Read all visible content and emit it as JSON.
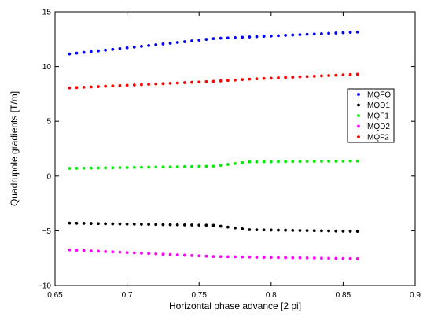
{
  "chart_data": {
    "type": "scatter",
    "title": "",
    "xlabel": "Horizontal phase advance [2 pi]",
    "ylabel": "Quadrupole gradients [T/m]",
    "xlim": [
      0.65,
      0.9
    ],
    "ylim": [
      -10,
      15
    ],
    "x_ticks": [
      {
        "value": 0.65,
        "label": "0.65"
      },
      {
        "value": 0.7,
        "label": "0.7"
      },
      {
        "value": 0.75,
        "label": "0.75"
      },
      {
        "value": 0.8,
        "label": "0.8"
      },
      {
        "value": 0.85,
        "label": "0.85"
      },
      {
        "value": 0.9,
        "label": "0.9"
      }
    ],
    "y_ticks": [
      {
        "value": -10,
        "label": "−10"
      },
      {
        "value": -5,
        "label": "−5"
      },
      {
        "value": 0,
        "label": "0"
      },
      {
        "value": 5,
        "label": "5"
      },
      {
        "value": 10,
        "label": "10"
      },
      {
        "value": 15,
        "label": "15"
      }
    ],
    "grid": false,
    "legend_position": "right",
    "x_start": 0.66,
    "x_end": 0.86,
    "x_step": 0.005,
    "series": [
      {
        "name": "MQFO",
        "color": "#0000ff",
        "values": [
          11.15,
          11.22,
          11.29,
          11.36,
          11.43,
          11.5,
          11.57,
          11.64,
          11.71,
          11.78,
          11.85,
          11.92,
          11.99,
          12.06,
          12.13,
          12.2,
          12.27,
          12.34,
          12.41,
          12.48,
          12.55,
          12.58,
          12.61,
          12.64,
          12.67,
          12.7,
          12.73,
          12.76,
          12.79,
          12.82,
          12.85,
          12.88,
          12.91,
          12.94,
          12.97,
          13.0,
          13.03,
          13.06,
          13.09,
          13.12,
          13.15
        ]
      },
      {
        "name": "MQD1",
        "color": "#000000",
        "values": [
          -4.3,
          -4.31,
          -4.32,
          -4.33,
          -4.34,
          -4.35,
          -4.36,
          -4.37,
          -4.38,
          -4.39,
          -4.4,
          -4.41,
          -4.42,
          -4.43,
          -4.44,
          -4.45,
          -4.46,
          -4.47,
          -4.48,
          -4.49,
          -4.5,
          -4.58,
          -4.66,
          -4.74,
          -4.82,
          -4.9,
          -4.91,
          -4.92,
          -4.93,
          -4.94,
          -4.95,
          -4.96,
          -4.97,
          -4.98,
          -4.99,
          -5.0,
          -5.01,
          -5.02,
          -5.03,
          -5.04,
          -5.05
        ]
      },
      {
        "name": "MQF1",
        "color": "#00ee00",
        "values": [
          0.7,
          0.71,
          0.72,
          0.73,
          0.74,
          0.75,
          0.76,
          0.77,
          0.78,
          0.79,
          0.8,
          0.81,
          0.82,
          0.83,
          0.84,
          0.85,
          0.86,
          0.87,
          0.88,
          0.89,
          0.9,
          0.98,
          1.06,
          1.14,
          1.22,
          1.3,
          1.3,
          1.31,
          1.31,
          1.32,
          1.32,
          1.33,
          1.33,
          1.34,
          1.34,
          1.35,
          1.35,
          1.36,
          1.36,
          1.37,
          1.37
        ]
      },
      {
        "name": "MQD2",
        "color": "#ff00ff",
        "values": [
          -6.75,
          -6.78,
          -6.81,
          -6.84,
          -6.87,
          -6.9,
          -6.93,
          -6.96,
          -6.99,
          -7.02,
          -7.05,
          -7.08,
          -7.11,
          -7.14,
          -7.17,
          -7.2,
          -7.23,
          -7.26,
          -7.29,
          -7.32,
          -7.35,
          -7.36,
          -7.37,
          -7.38,
          -7.39,
          -7.4,
          -7.41,
          -7.42,
          -7.43,
          -7.44,
          -7.45,
          -7.46,
          -7.47,
          -7.48,
          -7.49,
          -7.5,
          -7.51,
          -7.52,
          -7.53,
          -7.54,
          -7.55
        ]
      },
      {
        "name": "MQF2",
        "color": "#ff0000",
        "values": [
          8.05,
          8.08,
          8.11,
          8.14,
          8.17,
          8.2,
          8.23,
          8.26,
          8.29,
          8.32,
          8.35,
          8.38,
          8.41,
          8.44,
          8.47,
          8.5,
          8.53,
          8.56,
          8.59,
          8.62,
          8.65,
          8.69,
          8.73,
          8.77,
          8.81,
          8.85,
          8.88,
          8.91,
          8.94,
          8.97,
          9.0,
          9.03,
          9.06,
          9.09,
          9.12,
          9.15,
          9.18,
          9.21,
          9.24,
          9.27,
          9.3
        ]
      }
    ]
  }
}
